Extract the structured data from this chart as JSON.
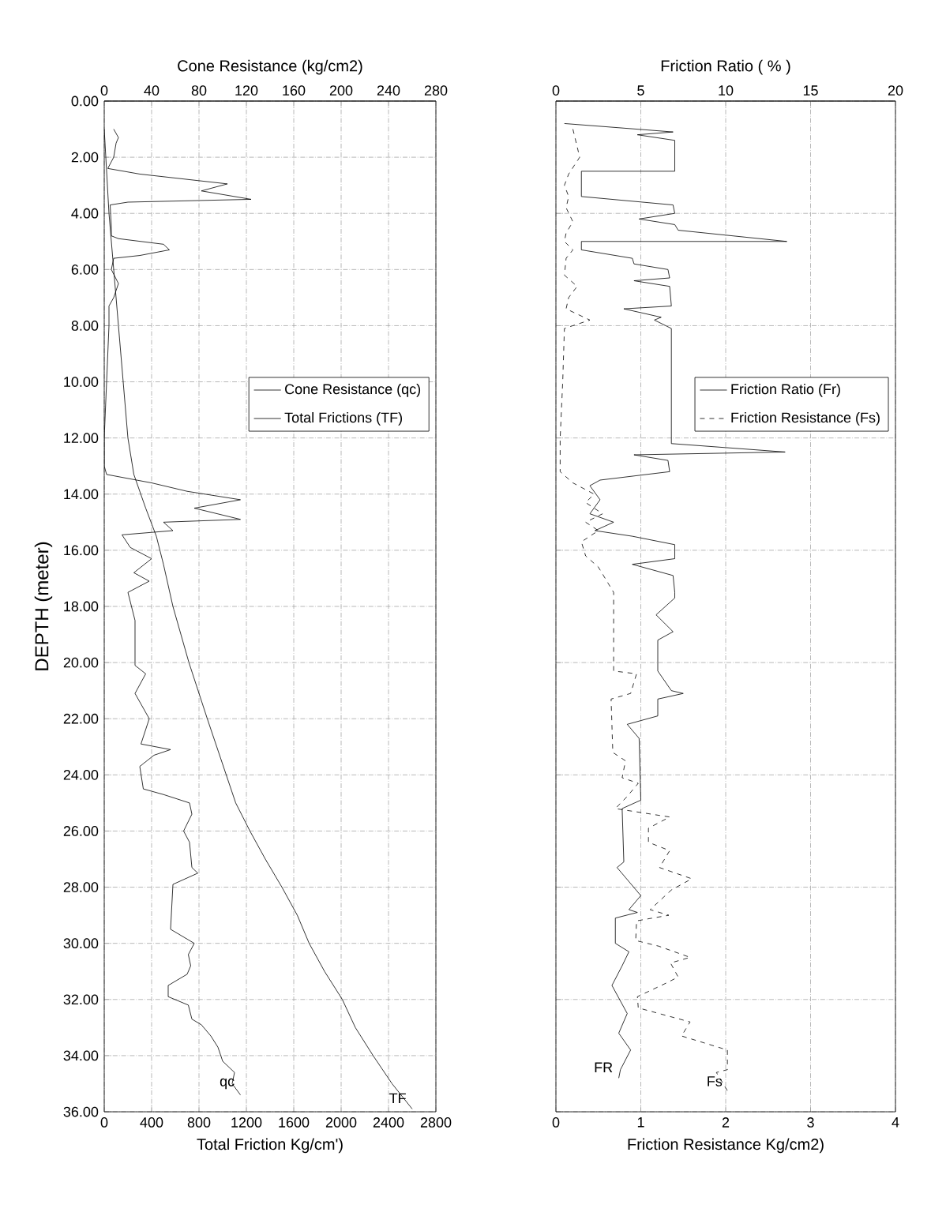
{
  "chart_data": [
    {
      "type": "line",
      "ylabel": "DEPTH (meter)",
      "xlabel": "Total Friction Kg/cm')",
      "x2label": "Cone Resistance (kg/cm2)",
      "ylim": [
        36,
        0
      ],
      "yticks": [
        {
          "value": 0,
          "label": "0.00"
        },
        {
          "value": 2,
          "label": "2.00"
        },
        {
          "value": 4,
          "label": "4.00"
        },
        {
          "value": 6,
          "label": "6.00"
        },
        {
          "value": 8,
          "label": "8.00"
        },
        {
          "value": 10,
          "label": "10.00"
        },
        {
          "value": 12,
          "label": "12.00"
        },
        {
          "value": 14,
          "label": "14.00"
        },
        {
          "value": 16,
          "label": "16.00"
        },
        {
          "value": 18,
          "label": "18.00"
        },
        {
          "value": 20,
          "label": "20.00"
        },
        {
          "value": 22,
          "label": "22.00"
        },
        {
          "value": 24,
          "label": "24.00"
        },
        {
          "value": 26,
          "label": "26.00"
        },
        {
          "value": 28,
          "label": "28.00"
        },
        {
          "value": 30,
          "label": "30.00"
        },
        {
          "value": 32,
          "label": "32.00"
        },
        {
          "value": 34,
          "label": "34.00"
        },
        {
          "value": 36,
          "label": "36.00"
        }
      ],
      "xlim": [
        0,
        2800
      ],
      "xticks": [
        0,
        400,
        800,
        1200,
        1600,
        2000,
        2400,
        2800
      ],
      "x2lim": [
        0,
        280
      ],
      "x2ticks": [
        0,
        40,
        80,
        120,
        160,
        200,
        240,
        280
      ],
      "grid": true,
      "legend": "right",
      "series": [
        {
          "name": "Cone Resistance (qc)",
          "color": "#000000",
          "axis": "x2",
          "line_style": "solid",
          "x": [
            8,
            12,
            10,
            8,
            3,
            30,
            104,
            82,
            124,
            20,
            5,
            6,
            6,
            12,
            50,
            55,
            30,
            8,
            6,
            12,
            8,
            4,
            4,
            2,
            0,
            0,
            2,
            40,
            70,
            115,
            76,
            115,
            50,
            58,
            15,
            22,
            40,
            25,
            38,
            20,
            26,
            26,
            35,
            26,
            38,
            31,
            56,
            42,
            30,
            33,
            50,
            72,
            74,
            67,
            72,
            74,
            79,
            58,
            56,
            76,
            71,
            73,
            70,
            54,
            54,
            71,
            74,
            82,
            90,
            96,
            100,
            110,
            108,
            115
          ],
          "values": [
            1.0,
            1.3,
            1.5,
            2.0,
            2.4,
            2.6,
            2.95,
            3.2,
            3.5,
            3.6,
            3.7,
            4.5,
            4.8,
            4.9,
            5.1,
            5.3,
            5.5,
            5.6,
            6.0,
            6.5,
            7.0,
            7.3,
            8.0,
            10.0,
            12.0,
            13.0,
            13.3,
            13.6,
            13.9,
            14.2,
            14.5,
            14.9,
            15.0,
            15.3,
            15.45,
            15.9,
            16.3,
            16.8,
            17.1,
            17.5,
            18.5,
            20.1,
            20.4,
            21.1,
            22.0,
            22.9,
            23.1,
            23.3,
            23.7,
            24.5,
            24.7,
            25.0,
            25.4,
            26.0,
            26.4,
            27.3,
            27.5,
            27.9,
            29.5,
            30.0,
            30.4,
            30.8,
            31.1,
            31.5,
            31.9,
            32.2,
            32.7,
            32.9,
            33.3,
            33.7,
            34.2,
            34.6,
            35.0,
            35.4
          ]
        },
        {
          "name": "Total Frictions (TF)",
          "color": "#000000",
          "line_style": "solid",
          "x": [
            0,
            40,
            120,
            200,
            250,
            350,
            440,
            500,
            580,
            715,
            870,
            1030,
            1110,
            1230,
            1360,
            1500,
            1630,
            1730,
            1860,
            2010,
            2120,
            2270,
            2430,
            2600
          ],
          "values": [
            1.0,
            4,
            8,
            12,
            13.3,
            14.5,
            15.5,
            16.5,
            18,
            20,
            22,
            24,
            25,
            26,
            27,
            28,
            29,
            30,
            31,
            32,
            33,
            34,
            35,
            35.9
          ]
        }
      ],
      "annotations": [
        "qc",
        "TF"
      ]
    },
    {
      "type": "line",
      "xlabel": "Friction Resistance Kg/cm2)",
      "x2label": "Friction Ratio ( % )",
      "ylim": [
        36,
        0
      ],
      "yticks": [
        {
          "value": 0,
          "label": null
        },
        {
          "value": 4,
          "label": null
        },
        {
          "value": 8,
          "label": null
        },
        {
          "value": 12,
          "label": null
        },
        {
          "value": 16,
          "label": null
        },
        {
          "value": 20,
          "label": null
        },
        {
          "value": 24,
          "label": null
        },
        {
          "value": 28,
          "label": null
        },
        {
          "value": 32,
          "label": null
        },
        {
          "value": 36,
          "label": null
        }
      ],
      "tick_labels": "x",
      "xlim": [
        0,
        4
      ],
      "xticks": [
        0,
        1,
        2,
        3,
        4
      ],
      "x2lim": [
        0,
        20
      ],
      "x2ticks": [
        0,
        5,
        10,
        15,
        20
      ],
      "grid": true,
      "legend": "right",
      "series": [
        {
          "name": "Friction Ratio (Fr)",
          "color": "#000000",
          "axis": "x2",
          "line_style": "solid",
          "x": [
            0.5,
            6.9,
            4.8,
            7.0,
            7.0,
            1.5,
            1.5,
            6.9,
            7.0,
            4.9,
            7.0,
            7.2,
            13.6,
            1.5,
            1.5,
            4.5,
            4.6,
            6.6,
            6.7,
            4.6,
            6.7,
            6.8,
            4.0,
            6.2,
            5.8,
            6.8,
            6.8,
            13.5,
            4.6,
            6.6,
            6.7,
            2.6,
            2.0,
            2.6,
            2.0,
            3.4,
            2.3,
            4.5,
            7.0,
            7.0,
            4.5,
            6.9,
            7.0,
            7.0,
            5.9,
            6.9,
            6.0,
            6.0,
            6.8,
            7.5,
            6.0,
            6.0,
            4.2,
            4.9,
            5.0,
            3.9,
            4.0,
            3.6,
            5.0,
            4.3,
            4.8,
            3.5,
            3.5,
            4.3,
            3.9,
            3.3,
            4.2,
            3.7,
            4.4,
            3.8,
            3.7
          ],
          "values": [
            0.8,
            1.1,
            1.2,
            1.4,
            2.5,
            2.5,
            3.4,
            3.7,
            4.0,
            4.2,
            4.4,
            4.6,
            5.0,
            5.0,
            5.3,
            5.6,
            5.8,
            6.0,
            6.3,
            6.4,
            6.6,
            7.3,
            7.4,
            7.7,
            7.8,
            8.1,
            12.2,
            12.5,
            12.6,
            12.8,
            13.2,
            13.5,
            13.7,
            14.2,
            14.7,
            15.0,
            15.3,
            15.5,
            15.8,
            16.3,
            16.5,
            16.9,
            17.5,
            17.7,
            18.3,
            18.9,
            19.2,
            20.3,
            21.0,
            21.1,
            21.3,
            21.9,
            22.2,
            22.7,
            24.9,
            25.2,
            27.1,
            27.3,
            28.3,
            28.8,
            28.9,
            29.1,
            30.0,
            30.3,
            30.8,
            31.5,
            32.5,
            33.2,
            33.8,
            34.5,
            34.8
          ]
        },
        {
          "name": "Friction Resistance (Fs)",
          "color": "#000000",
          "line_style": "dashed",
          "x": [
            0.2,
            0.28,
            0.15,
            0.1,
            0.15,
            0.12,
            0.2,
            0.12,
            0.1,
            0.2,
            0.12,
            0.1,
            0.25,
            0.15,
            0.12,
            0.4,
            0.1,
            0.08,
            0.05,
            0.05,
            0.2,
            0.45,
            0.35,
            0.55,
            0.35,
            0.5,
            0.3,
            0.35,
            0.5,
            0.62,
            0.68,
            0.68,
            0.95,
            0.88,
            0.65,
            0.67,
            0.82,
            0.78,
            0.97,
            0.83,
            0.7,
            1.34,
            1.09,
            1.09,
            1.34,
            1.22,
            1.6,
            1.36,
            1.11,
            1.33,
            0.95,
            0.94,
            1.21,
            1.58,
            1.35,
            1.44,
            1.31,
            0.96,
            0.97,
            1.58,
            1.48,
            2.02,
            2.02,
            1.89,
            2.03
          ],
          "values": [
            1.0,
            2.0,
            2.6,
            3.0,
            3.4,
            3.8,
            4.3,
            4.7,
            5.0,
            5.3,
            5.6,
            6.2,
            6.6,
            7.0,
            7.4,
            7.8,
            8.1,
            10,
            12,
            13.2,
            13.6,
            14.0,
            14.3,
            14.7,
            15.0,
            15.3,
            15.7,
            16.2,
            16.6,
            17.2,
            17.5,
            20.3,
            20.4,
            21.1,
            21.3,
            23.2,
            23.5,
            24.1,
            24.3,
            24.8,
            25.2,
            25.5,
            25.9,
            26.4,
            26.7,
            27.3,
            27.7,
            28.1,
            28.8,
            29.0,
            29.2,
            29.9,
            30.1,
            30.5,
            30.7,
            31.2,
            31.4,
            31.9,
            32.3,
            32.8,
            33.3,
            33.8,
            34.5,
            34.6,
            35.3
          ]
        }
      ],
      "annotations": [
        "FR",
        "Fs"
      ]
    }
  ]
}
